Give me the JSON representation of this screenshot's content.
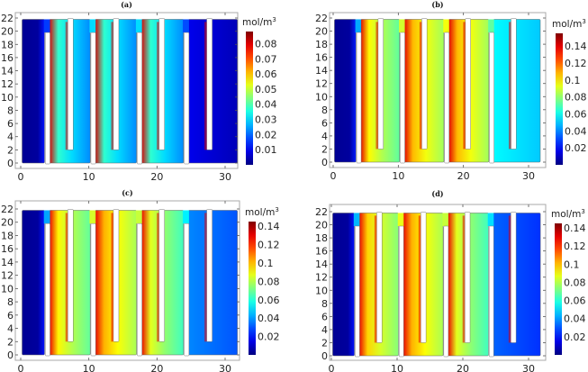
{
  "figure": {
    "unit_label": "mol/m",
    "unit_sup": "3"
  },
  "chart_data": [
    {
      "type": "heatmap",
      "title": "(a)",
      "xlabel": "",
      "ylabel": "",
      "xlim": [
        0,
        32
      ],
      "ylim": [
        0,
        22
      ],
      "xticks": [
        "0",
        "10",
        "20",
        "30"
      ],
      "yticks": [
        "0",
        "2",
        "4",
        "6",
        "8",
        "10",
        "12",
        "14",
        "16",
        "18",
        "20",
        "22"
      ],
      "colorbar": {
        "label": "mol/m^3",
        "range": [
          0,
          0.088
        ],
        "ticks": [
          "0.01",
          "0.02",
          "0.03",
          "0.04",
          "0.05",
          "0.06",
          "0.07",
          "0.08"
        ]
      },
      "description": "Concentration in serpentine/interdigitated channel; peaks (~0.08) along left walls of channels 2-4, near zero in first and last channels",
      "channel_levels": [
        0.002,
        0.03,
        0.03,
        0.03,
        0.005
      ],
      "peak_edge_level": 0.08
    },
    {
      "type": "heatmap",
      "title": "(b)",
      "xlabel": "",
      "ylabel": "",
      "xlim": [
        0,
        32
      ],
      "ylim": [
        0,
        22
      ],
      "xticks": [
        "0",
        "10",
        "20",
        "30"
      ],
      "yticks": [
        "0",
        "2",
        "4",
        "6",
        "8",
        "10",
        "12",
        "14",
        "16",
        "18",
        "20",
        "22"
      ],
      "colorbar": {
        "label": "mol/m^3",
        "range": [
          0,
          0.155
        ],
        "ticks": [
          "0.02",
          "0.04",
          "0.06",
          "0.08",
          "0.1",
          "0.12",
          "0.14"
        ]
      },
      "description": "Higher concentration; channels 2-4 yellow-green with red bands (~0.13-0.14) at channel walls; last channel blue-cyan gradient",
      "channel_levels": [
        0.005,
        0.085,
        0.095,
        0.095,
        0.05
      ],
      "peak_edge_level": 0.14
    },
    {
      "type": "heatmap",
      "title": "(c)",
      "xlabel": "",
      "ylabel": "",
      "xlim": [
        0,
        32
      ],
      "ylim": [
        0,
        22
      ],
      "xticks": [
        "0",
        "10",
        "20",
        "30"
      ],
      "yticks": [
        "0",
        "2",
        "4",
        "6",
        "8",
        "10",
        "12",
        "14",
        "16",
        "18",
        "20",
        "22"
      ],
      "colorbar": {
        "label": "mol/m^3",
        "range": [
          0,
          0.145
        ],
        "ticks": [
          "0.02",
          "0.04",
          "0.06",
          "0.08",
          "0.1",
          "0.12",
          "0.14"
        ]
      },
      "description": "Channels 2-4 green-yellow with red near inlet top-left corners and channel walls (~0.12-0.13); first channel dark blue; last channel blue",
      "channel_levels": [
        0.003,
        0.08,
        0.09,
        0.075,
        0.03
      ],
      "peak_edge_level": 0.13
    },
    {
      "type": "heatmap",
      "title": "(d)",
      "xlabel": "",
      "ylabel": "",
      "xlim": [
        0,
        32
      ],
      "ylim": [
        0,
        22
      ],
      "xticks": [
        "0",
        "10",
        "20",
        "30"
      ],
      "yticks": [
        "0",
        "2",
        "4",
        "6",
        "8",
        "10",
        "12",
        "14",
        "16",
        "18",
        "20",
        "22"
      ],
      "colorbar": {
        "label": "mol/m^3",
        "range": [
          0,
          0.145
        ],
        "ticks": [
          "0.02",
          "0.04",
          "0.06",
          "0.08",
          "0.1",
          "0.12",
          "0.14"
        ]
      },
      "description": "Similar to (c): channels 2-4 yellow-green with red bands at walls; first channel dark blue; last channel blue",
      "channel_levels": [
        0.003,
        0.085,
        0.09,
        0.075,
        0.025
      ],
      "peak_edge_level": 0.13
    }
  ]
}
